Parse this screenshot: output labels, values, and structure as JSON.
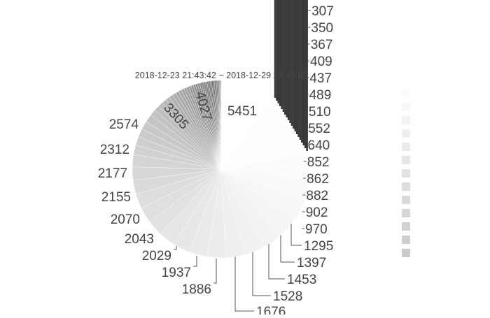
{
  "chart_data": {
    "type": "pie",
    "title": "2018-12-23 21:43:42 ~ 2018-12-29 21:45:05",
    "values": [
      5451,
      4027,
      3305,
      2574,
      2312,
      2177,
      2155,
      2070,
      2043,
      2029,
      1937,
      1886,
      1800,
      1740,
      1676,
      1600,
      1528,
      1453,
      1397,
      1295,
      970,
      902,
      882,
      862,
      852,
      640,
      552,
      510,
      489,
      437,
      409,
      367,
      350,
      307,
      290,
      275,
      262,
      250,
      240,
      232,
      225,
      218,
      210,
      200,
      190,
      180,
      170,
      160,
      150,
      140,
      130,
      120,
      110,
      100,
      90,
      80,
      70,
      60,
      50,
      40
    ],
    "labelled_values": [
      5451,
      4027,
      3305,
      2574,
      2312,
      2177,
      2155,
      2070,
      2043,
      2029,
      1937,
      1886,
      1676,
      1528,
      1453,
      1397,
      1295,
      970,
      902,
      882,
      862,
      852,
      640,
      552,
      510,
      489,
      437,
      409,
      367,
      350,
      307
    ],
    "direction": "clockwise",
    "start": "12 o'clock",
    "colors": [
      "#ffffff",
      "#fafafa",
      "#f4f4f4",
      "#eeeeee",
      "#e8e8e8",
      "#e3e3e3",
      "#dedede",
      "#d9d9d9",
      "#d4d4d4",
      "#cfcfcf",
      "#c9c9c9",
      "#c3c3c3",
      "#bdbdbd",
      "#b6b6b6",
      "#afafaf",
      "#a8a8a8",
      "#a0a0a0",
      "#989898",
      "#8f8f8f",
      "#868686",
      "#7c7c7c",
      "#727272",
      "#686868",
      "#5e5e5e",
      "#555555",
      "#4c4c4c",
      "#444444"
    ],
    "legend": {
      "placement": "right",
      "entries": 13
    }
  }
}
